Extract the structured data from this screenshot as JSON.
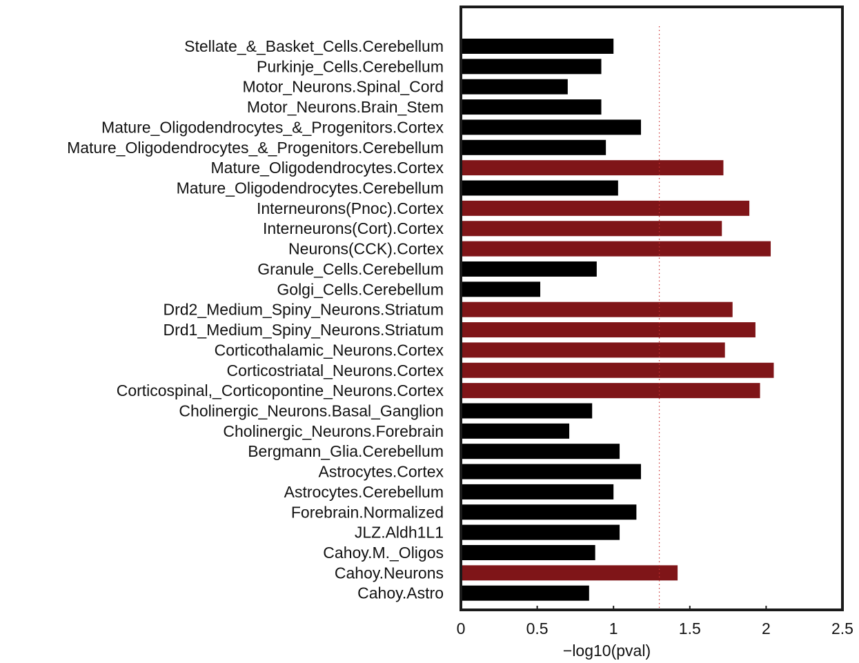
{
  "chart_data": {
    "type": "bar",
    "orientation": "horizontal",
    "title": "",
    "xlabel": "−log10(pval)",
    "ylabel": "",
    "xlim": [
      0,
      2.5
    ],
    "xticks": [
      0,
      0.5,
      1,
      1.5,
      2,
      2.5
    ],
    "xtick_labels": [
      "0",
      "0.5",
      "1",
      "1.5",
      "2",
      "2.5"
    ],
    "grid": false,
    "threshold": {
      "value": 1.3,
      "style": "dotted",
      "color": "#cc3333"
    },
    "colors": {
      "significant": "#7f1518",
      "nonsignificant": "#000000"
    },
    "categories": [
      "Stellate_&_Basket_Cells.Cerebellum",
      "Purkinje_Cells.Cerebellum",
      "Motor_Neurons.Spinal_Cord",
      "Motor_Neurons.Brain_Stem",
      "Mature_Oligodendrocytes_&_Progenitors.Cortex",
      "Mature_Oligodendrocytes_&_Progenitors.Cerebellum",
      "Mature_Oligodendrocytes.Cortex",
      "Mature_Oligodendrocytes.Cerebellum",
      "Interneurons(Pnoc).Cortex",
      "Interneurons(Cort).Cortex",
      "Neurons(CCK).Cortex",
      "Granule_Cells.Cerebellum",
      "Golgi_Cells.Cerebellum",
      "Drd2_Medium_Spiny_Neurons.Striatum",
      "Drd1_Medium_Spiny_Neurons.Striatum",
      "Corticothalamic_Neurons.Cortex",
      "Corticostriatal_Neurons.Cortex",
      "Corticospinal,_Corticopontine_Neurons.Cortex",
      "Cholinergic_Neurons.Basal_Ganglion",
      "Cholinergic_Neurons.Forebrain",
      "Bergmann_Glia.Cerebellum",
      "Astrocytes.Cortex",
      "Astrocytes.Cerebellum",
      "Forebrain.Normalized",
      "JLZ.Aldh1L1",
      "Cahoy.M._Oligos",
      "Cahoy.Neurons",
      "Cahoy.Astro"
    ],
    "values": [
      1.0,
      0.92,
      0.7,
      0.92,
      1.18,
      0.95,
      1.72,
      1.03,
      1.89,
      1.71,
      2.03,
      0.89,
      0.52,
      1.78,
      1.93,
      1.73,
      2.05,
      1.96,
      0.86,
      0.71,
      1.04,
      1.18,
      1.0,
      1.15,
      1.04,
      0.88,
      1.42,
      0.84
    ],
    "significant": [
      false,
      false,
      false,
      false,
      false,
      false,
      true,
      false,
      true,
      true,
      true,
      false,
      false,
      true,
      true,
      true,
      true,
      true,
      false,
      false,
      false,
      false,
      false,
      false,
      false,
      false,
      true,
      false
    ]
  }
}
